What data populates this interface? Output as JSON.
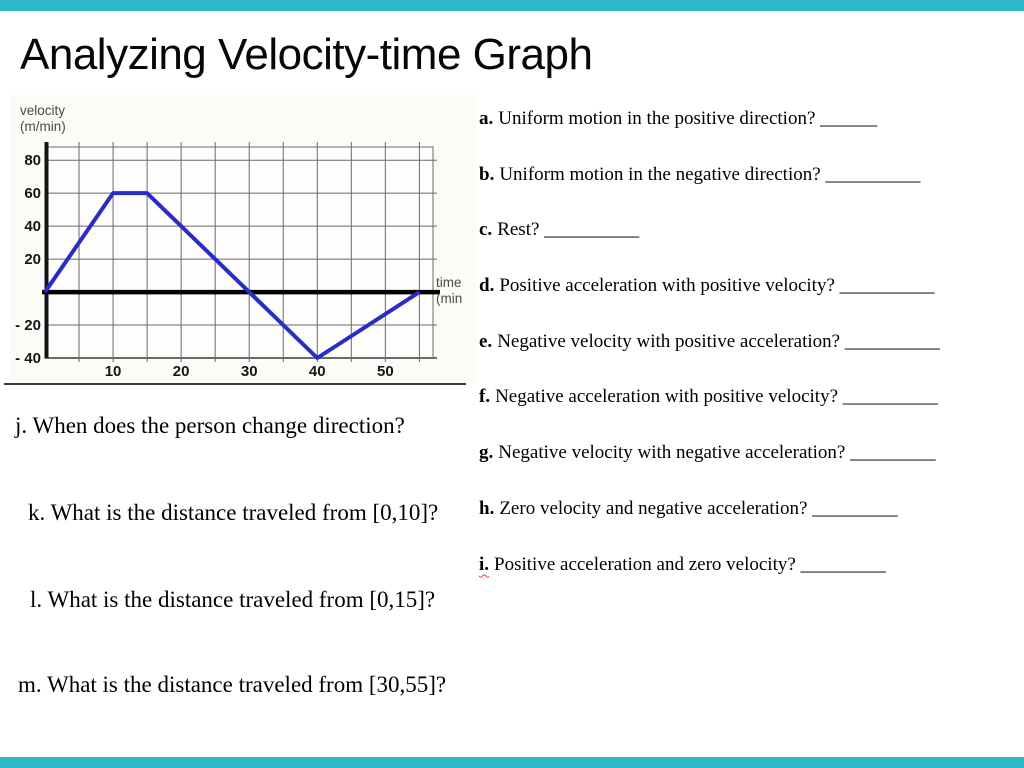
{
  "slide": {
    "title": "Analyzing Velocity-time Graph",
    "accent_color": "#2eb9c9"
  },
  "graph": {
    "y_axis_title": [
      "velocity",
      "(m/min)"
    ],
    "x_axis_title": [
      "time",
      "(min"
    ],
    "y_ticks": [
      {
        "v": 80,
        "label": "80"
      },
      {
        "v": 60,
        "label": "60"
      },
      {
        "v": 40,
        "label": "40"
      },
      {
        "v": 20,
        "label": "20"
      },
      {
        "v": -20,
        "label": "- 20"
      },
      {
        "v": -40,
        "label": "- 40"
      }
    ],
    "x_ticks": [
      10,
      20,
      30,
      40,
      50
    ],
    "line_color": "#2b2bc6"
  },
  "chart_data": {
    "type": "line",
    "title": "",
    "xlabel": "time (min)",
    "ylabel": "velocity (m/min)",
    "x": [
      0,
      10,
      15,
      40,
      55
    ],
    "y": [
      0,
      60,
      60,
      -40,
      0
    ],
    "xlim": [
      0,
      57
    ],
    "ylim": [
      -40,
      88
    ],
    "x_gridline_step": 5,
    "y_gridline_step": 20,
    "grid": true,
    "legend": false
  },
  "questions_right": [
    {
      "label": "a.",
      "text": "Uniform motion in the positive direction?",
      "blank": " ______"
    },
    {
      "label": "b.",
      "text": "Uniform motion in the negative direction?",
      "blank": " __________"
    },
    {
      "label": "c.",
      "text": "Rest?",
      "blank": " __________"
    },
    {
      "label": "d.",
      "text": "Positive acceleration with positive velocity?",
      "blank": " __________"
    },
    {
      "label": "e.",
      "text": "Negative velocity with positive acceleration?",
      "blank": " __________"
    },
    {
      "label": "f.",
      "text": "Negative acceleration with positive velocity?",
      "blank": " __________"
    },
    {
      "label": "g.",
      "text": "Negative velocity with negative acceleration?",
      "blank": " _________"
    },
    {
      "label": "h.",
      "text": "Zero velocity and negative acceleration?",
      "blank": " _________"
    },
    {
      "label": "i.",
      "text": "Positive acceleration and zero velocity?",
      "blank": " _________"
    }
  ],
  "questions_left": [
    {
      "label": "j.",
      "text": "When does the person change direction?"
    },
    {
      "label": "k.",
      "text": "What is the distance traveled from [0,10]?"
    },
    {
      "label": "l.",
      "text": "What is the distance traveled from [0,15]?"
    },
    {
      "label": "m.",
      "text": "What is the distance traveled from [30,55]?"
    }
  ]
}
